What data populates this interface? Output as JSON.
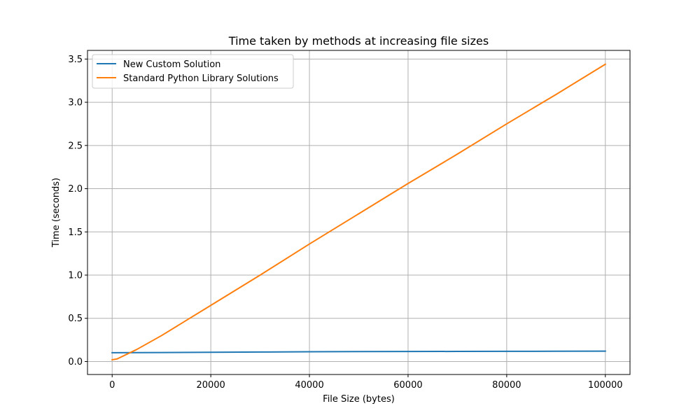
{
  "chart_data": {
    "type": "line",
    "title": "Time taken by methods at increasing file sizes",
    "xlabel": "File Size (bytes)",
    "ylabel": "Time (seconds)",
    "xlim": [
      -5000,
      105000
    ],
    "ylim": [
      -0.15,
      3.6
    ],
    "xticks": [
      0,
      20000,
      40000,
      60000,
      80000,
      100000
    ],
    "xtick_labels": [
      "0",
      "20000",
      "40000",
      "60000",
      "80000",
      "100000"
    ],
    "yticks": [
      0.0,
      0.5,
      1.0,
      1.5,
      2.0,
      2.5,
      3.0,
      3.5
    ],
    "ytick_labels": [
      "0.0",
      "0.5",
      "1.0",
      "1.5",
      "2.0",
      "2.5",
      "3.0",
      "3.5"
    ],
    "grid": true,
    "legend_position": "upper-left",
    "series": [
      {
        "name": "New Custom Solution",
        "color": "#1f77b4",
        "x": [
          0,
          10000,
          20000,
          30000,
          40000,
          50000,
          60000,
          70000,
          80000,
          90000,
          100000
        ],
        "y": [
          0.102,
          0.104,
          0.107,
          0.11,
          0.113,
          0.115,
          0.116,
          0.117,
          0.118,
          0.119,
          0.12
        ]
      },
      {
        "name": "Standard Python Library Solutions",
        "color": "#ff7f0e",
        "x": [
          0,
          1000,
          5000,
          10000,
          20000,
          30000,
          40000,
          50000,
          60000,
          70000,
          80000,
          90000,
          100000
        ],
        "y": [
          0.02,
          0.03,
          0.14,
          0.3,
          0.65,
          1.0,
          1.36,
          1.71,
          2.06,
          2.4,
          2.75,
          3.09,
          3.44
        ]
      }
    ]
  }
}
